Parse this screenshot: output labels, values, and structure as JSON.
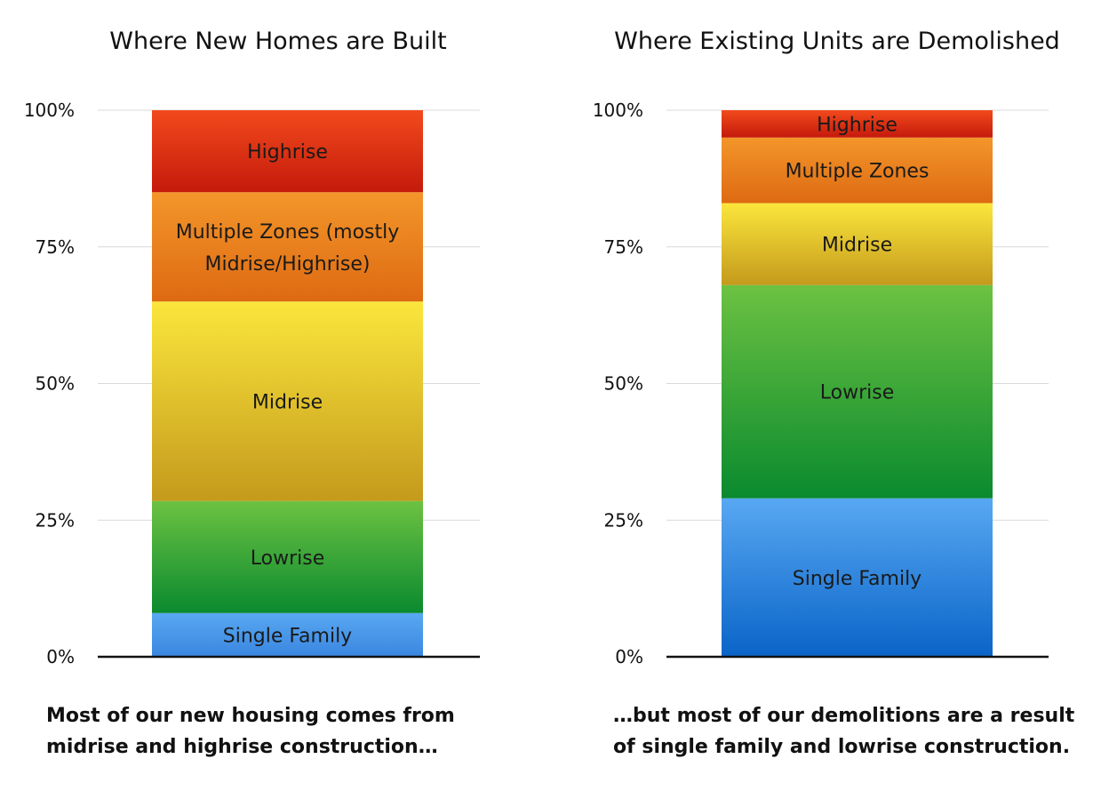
{
  "chart_data": [
    {
      "type": "bar",
      "stacked": true,
      "title": "Where New Homes are Built",
      "ylim": [
        0,
        100
      ],
      "y_ticks": [
        "0%",
        "25%",
        "50%",
        "75%",
        "100%"
      ],
      "y_tick_values": [
        0,
        25,
        50,
        75,
        100
      ],
      "grid": true,
      "series": [
        {
          "name": "Single Family",
          "values": [
            8
          ],
          "colors": [
            "#3a86e0",
            "#58a8f2"
          ]
        },
        {
          "name": "Lowrise",
          "values": [
            20.5
          ],
          "colors": [
            "#0a8a2e",
            "#6cc242"
          ]
        },
        {
          "name": "Midrise",
          "values": [
            36.5
          ],
          "colors": [
            "#c49a1c",
            "#fbe63c"
          ]
        },
        {
          "name": "Multiple Zones (mostly Midrise/Highrise)",
          "label_lines": [
            "Multiple Zones (mostly",
            "Midrise/Highrise)"
          ],
          "values": [
            20
          ],
          "colors": [
            "#de6a12",
            "#f3962a"
          ]
        },
        {
          "name": "Highrise",
          "values": [
            15
          ],
          "colors": [
            "#c41a0c",
            "#f24a1c"
          ]
        }
      ]
    },
    {
      "type": "bar",
      "stacked": true,
      "title": "Where Existing Units are Demolished",
      "ylim": [
        0,
        100
      ],
      "y_ticks": [
        "0%",
        "25%",
        "50%",
        "75%",
        "100%"
      ],
      "y_tick_values": [
        0,
        25,
        50,
        75,
        100
      ],
      "grid": true,
      "series": [
        {
          "name": "Single Family",
          "values": [
            29
          ],
          "colors": [
            "#0a64c8",
            "#58a8f2"
          ]
        },
        {
          "name": "Lowrise",
          "values": [
            39
          ],
          "colors": [
            "#0a8a2e",
            "#6cc242"
          ]
        },
        {
          "name": "Midrise",
          "values": [
            15
          ],
          "colors": [
            "#c49a1c",
            "#fbe63c"
          ]
        },
        {
          "name": "Multiple Zones",
          "values": [
            12
          ],
          "colors": [
            "#de6a12",
            "#f3962a"
          ]
        },
        {
          "name": "Highrise",
          "values": [
            5
          ],
          "colors": [
            "#c41a0c",
            "#f24a1c"
          ]
        }
      ]
    }
  ],
  "captions": {
    "left": [
      "Most of our new housing comes from",
      "midrise and highrise construction…"
    ],
    "right": [
      "…but most of our demolitions are a result",
      "of single family and lowrise construction."
    ]
  }
}
